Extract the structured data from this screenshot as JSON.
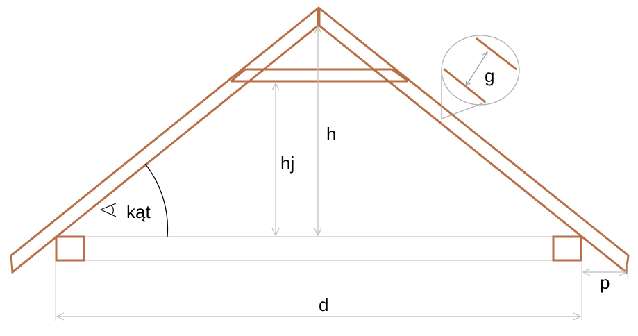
{
  "diagram": {
    "labels": {
      "h": "h",
      "hj": "hj",
      "angle": "kąt",
      "g": "g",
      "d": "d",
      "p": "p"
    },
    "colors": {
      "timber": "#b86f45",
      "dimension": "#c0c0c0",
      "beam": "#cfcfcf",
      "text": "#000000"
    }
  }
}
